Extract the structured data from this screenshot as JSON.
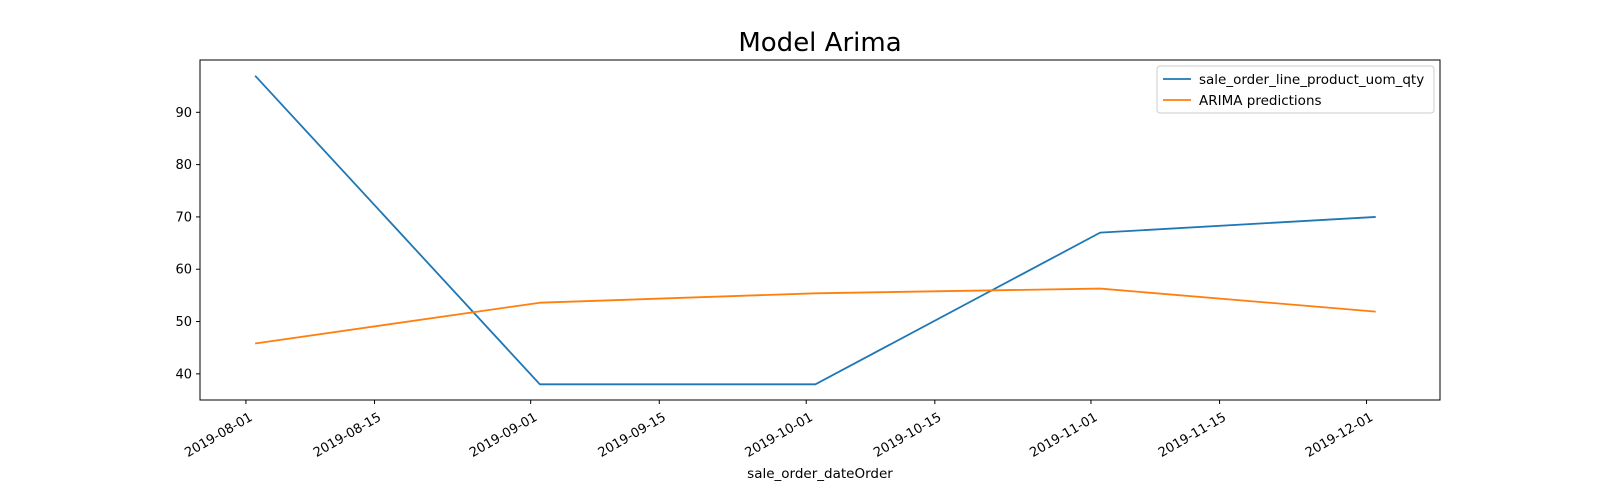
{
  "chart_data": {
    "type": "line",
    "title": "Model Arima",
    "xlabel": "sale_order_dateOrder",
    "ylabel": "",
    "x": [
      "2019-08-02",
      "2019-09-02",
      "2019-10-02",
      "2019-11-02",
      "2019-12-02"
    ],
    "series": [
      {
        "name": "sale_order_line_product_uom_qty",
        "color": "#1f77b4",
        "values": [
          97,
          38,
          38,
          67,
          70
        ]
      },
      {
        "name": "ARIMA predictions",
        "color": "#ff7f0e",
        "values": [
          45.8,
          53.6,
          55.4,
          56.3,
          51.9
        ]
      }
    ],
    "x_ticks": [
      "2019-08-01",
      "2019-08-15",
      "2019-09-01",
      "2019-09-15",
      "2019-10-01",
      "2019-10-15",
      "2019-11-01",
      "2019-11-15",
      "2019-12-01"
    ],
    "y_ticks": [
      40,
      50,
      60,
      70,
      80,
      90
    ],
    "xlim": [
      "2019-07-27",
      "2019-12-09"
    ],
    "ylim": [
      35,
      100
    ],
    "grid": false,
    "legend_position": "top-right"
  }
}
